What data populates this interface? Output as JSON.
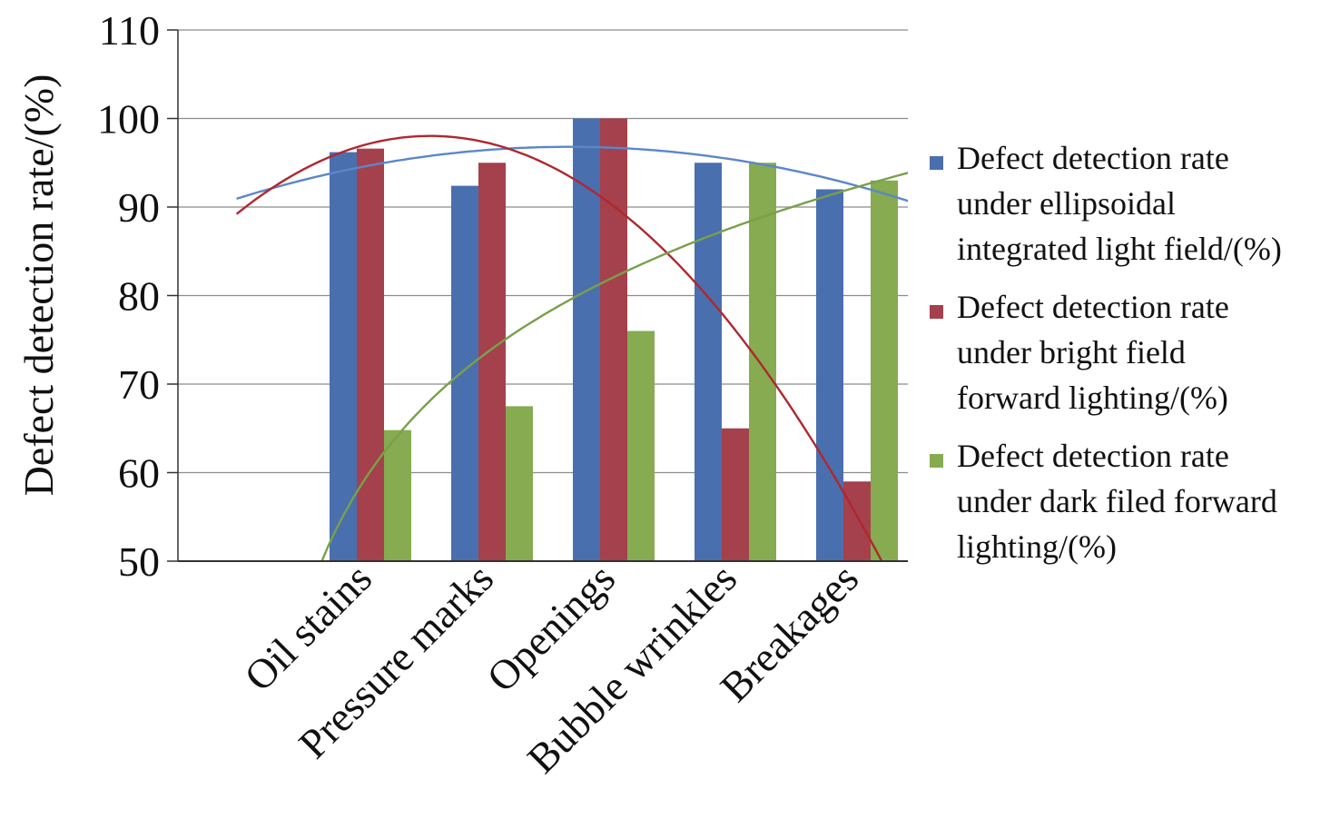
{
  "chart_data": {
    "type": "bar",
    "title": "",
    "xlabel": "",
    "ylabel": "Defect detection rate/(%)",
    "ylim": [
      50,
      110
    ],
    "yticks": [
      50,
      60,
      70,
      80,
      90,
      100,
      110
    ],
    "grid": true,
    "legend_position": "right",
    "categories": [
      "Oil stains",
      "Pressure marks",
      "Openings",
      "Bubble wrinkles",
      "Breakages"
    ],
    "series": [
      {
        "name": "Defect detection rate under ellipsoidal integrated light field/(%)",
        "legend_lines": [
          "Defect detection rate",
          "under ellipsoidal",
          "integrated light field/(%)"
        ],
        "color": "#4a6fae",
        "values": [
          96.2,
          92.4,
          100,
          95,
          92
        ]
      },
      {
        "name": "Defect detection rate under bright field forward lighting/(%)",
        "legend_lines": [
          "Defect detection rate",
          "under bright field",
          "forward lighting/(%)"
        ],
        "color": "#a5404d",
        "values": [
          96.6,
          95,
          100,
          65,
          59
        ]
      },
      {
        "name": "Defect detection rate under dark filed forward lighting/(%)",
        "legend_lines": [
          "Defect detection rate",
          "under dark filed forward",
          "lighting/(%)"
        ],
        "color": "#86ab50",
        "values": [
          64.8,
          67.5,
          76,
          95,
          93
        ]
      }
    ],
    "trendlines": [
      {
        "series": 0,
        "type": "polynomial",
        "color": "#5b87c9"
      },
      {
        "series": 1,
        "type": "polynomial",
        "color": "#b0272f"
      },
      {
        "series": 2,
        "type": "logarithmic",
        "color": "#79a04a"
      }
    ]
  }
}
